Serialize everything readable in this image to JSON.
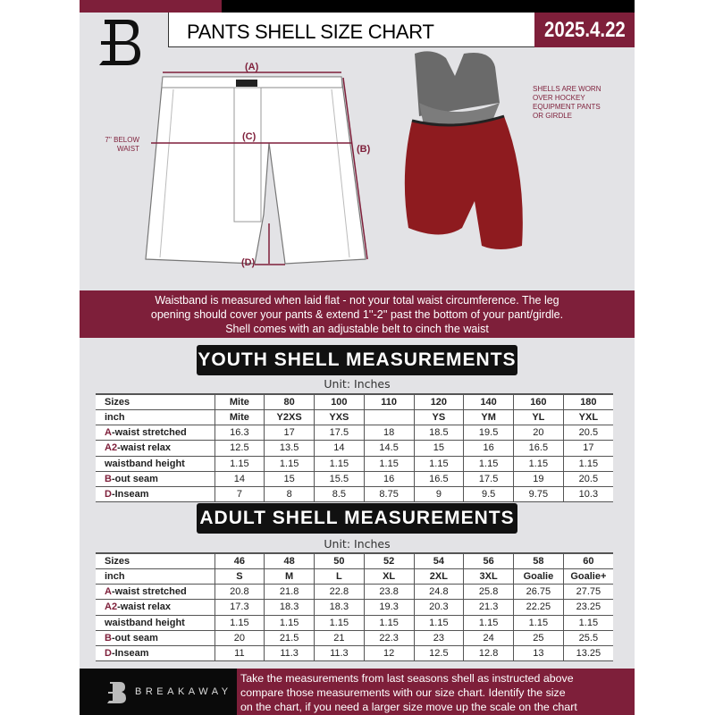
{
  "header": {
    "title": "PANTS SHELL SIZE CHART",
    "date": "2025.4.22"
  },
  "diagram": {
    "label_a": "(A)",
    "label_b": "(B)",
    "label_c": "(C)",
    "label_d": "(D)",
    "waist_note_1": "7'' BELOW",
    "waist_note_2": "WAIST",
    "shell_note": [
      "SHELLS ARE WORN",
      "OVER HOCKEY",
      "EQUIPMENT PANTS",
      "OR GIRDLE"
    ]
  },
  "info_band": [
    "Waistband is measured when laid flat - not your total waist circumference. The leg",
    "opening should cover your pants & extend 1''-2'' past the bottom of your pant/girdle.",
    "Shell comes with an adjustable belt to cinch the waist"
  ],
  "youth": {
    "title": "YOUTH SHELL MEASUREMENTS",
    "unit": "Unit: Inches",
    "rows": [
      {
        "prefix": "",
        "label": "Sizes",
        "values": [
          "Mite",
          "80",
          "100",
          "110",
          "120",
          "140",
          "160",
          "180"
        ]
      },
      {
        "prefix": "",
        "label": "inch",
        "values": [
          "Mite",
          "Y2XS",
          "YXS",
          "",
          "YS",
          "YM",
          "YL",
          "YXL"
        ]
      },
      {
        "prefix": "A",
        "label": "-waist stretched",
        "values": [
          "16.3",
          "17",
          "17.5",
          "18",
          "18.5",
          "19.5",
          "20",
          "20.5"
        ]
      },
      {
        "prefix": "A2",
        "label": "-waist relax",
        "values": [
          "12.5",
          "13.5",
          "14",
          "14.5",
          "15",
          "16",
          "16.5",
          "17"
        ]
      },
      {
        "prefix": "",
        "label": "waistband height",
        "values": [
          "1.15",
          "1.15",
          "1.15",
          "1.15",
          "1.15",
          "1.15",
          "1.15",
          "1.15"
        ]
      },
      {
        "prefix": "B",
        "label": "-out seam",
        "values": [
          "14",
          "15",
          "15.5",
          "16",
          "16.5",
          "17.5",
          "19",
          "20.5"
        ]
      },
      {
        "prefix": "D",
        "label": "-Inseam",
        "values": [
          "7",
          "8",
          "8.5",
          "8.75",
          "9",
          "9.5",
          "9.75",
          "10.3"
        ]
      }
    ]
  },
  "adult": {
    "title": "ADULT SHELL MEASUREMENTS",
    "unit": "Unit: Inches",
    "rows": [
      {
        "prefix": "",
        "label": "Sizes",
        "values": [
          "46",
          "48",
          "50",
          "52",
          "54",
          "56",
          "58",
          "60"
        ]
      },
      {
        "prefix": "",
        "label": "inch",
        "values": [
          "S",
          "M",
          "L",
          "XL",
          "2XL",
          "3XL",
          "Goalie",
          "Goalie+"
        ]
      },
      {
        "prefix": "A",
        "label": "-waist stretched",
        "values": [
          "20.8",
          "21.8",
          "22.8",
          "23.8",
          "24.8",
          "25.8",
          "26.75",
          "27.75"
        ]
      },
      {
        "prefix": "A2",
        "label": "-waist relax",
        "values": [
          "17.3",
          "18.3",
          "18.3",
          "19.3",
          "20.3",
          "21.3",
          "22.25",
          "23.25"
        ]
      },
      {
        "prefix": "",
        "label": "waistband height",
        "values": [
          "1.15",
          "1.15",
          "1.15",
          "1.15",
          "1.15",
          "1.15",
          "1.15",
          "1.15"
        ]
      },
      {
        "prefix": "B",
        "label": "-out seam",
        "values": [
          "20",
          "21.5",
          "21",
          "22.3",
          "23",
          "24",
          "25",
          "25.5"
        ]
      },
      {
        "prefix": "D",
        "label": "-Inseam",
        "values": [
          "11",
          "11.3",
          "11.3",
          "12",
          "12.5",
          "12.8",
          "13",
          "13.25"
        ]
      }
    ]
  },
  "footer": {
    "brand": "BREAKAWAY",
    "text": [
      "Take the measurements from last seasons shell as instructed above",
      "compare those measurements  with our size chart. Identify the size",
      "on the chart, if you need a larger size move up the scale on the chart"
    ]
  },
  "colors": {
    "brand": "#7e1f3a",
    "dark": "#0a0a0a",
    "background": "#e3e3e6"
  }
}
